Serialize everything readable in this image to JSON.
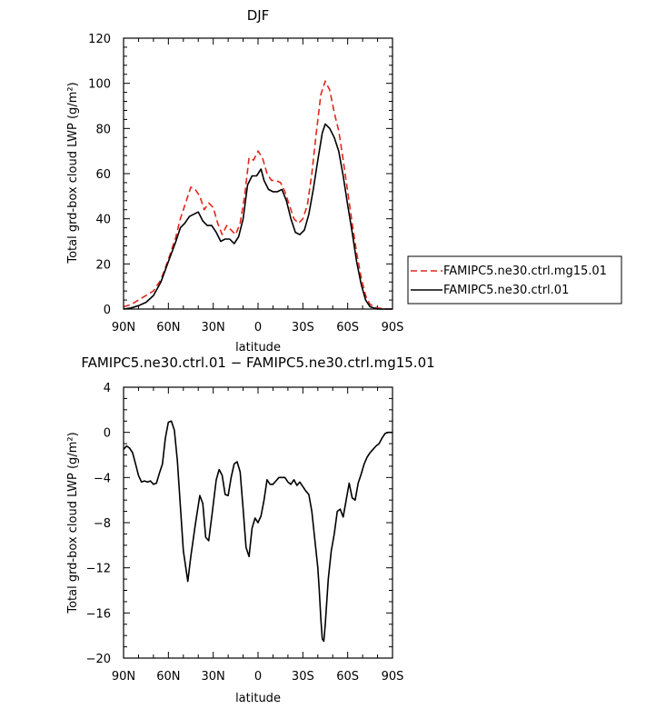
{
  "chart_data": [
    {
      "type": "line",
      "title": "DJF",
      "xlabel": "latitude",
      "ylabel": "Total grd-box cloud LWP (g/m²)",
      "xlim": [
        90,
        -90
      ],
      "ylim": [
        0,
        120
      ],
      "x_ticks": [
        90,
        60,
        30,
        0,
        -30,
        -60,
        -90
      ],
      "x_tick_labels": [
        "90N",
        "60N",
        "30N",
        "0",
        "30S",
        "60S",
        "90S"
      ],
      "y_ticks": [
        0,
        20,
        40,
        60,
        80,
        100,
        120
      ],
      "y_tick_labels": [
        "0",
        "20",
        "40",
        "60",
        "80",
        "100",
        "120"
      ],
      "legend_position": "right",
      "series": [
        {
          "name": "FAMIPC5.ne30.ctrl.mg15.01",
          "color": "#e0271b",
          "dash": "dashed",
          "points": [
            [
              90,
              1
            ],
            [
              85,
              2
            ],
            [
              80,
              4
            ],
            [
              75,
              6
            ],
            [
              70,
              8
            ],
            [
              65,
              13
            ],
            [
              60,
              22
            ],
            [
              55,
              32
            ],
            [
              52,
              40
            ],
            [
              48,
              48
            ],
            [
              45,
              54
            ],
            [
              42,
              53
            ],
            [
              39,
              50
            ],
            [
              36,
              44
            ],
            [
              33,
              47
            ],
            [
              30,
              45
            ],
            [
              27,
              38
            ],
            [
              24,
              33
            ],
            [
              21,
              37
            ],
            [
              18,
              35
            ],
            [
              15,
              33
            ],
            [
              12,
              38
            ],
            [
              9,
              50
            ],
            [
              6,
              67
            ],
            [
              3,
              66
            ],
            [
              0,
              70
            ],
            [
              -3,
              67
            ],
            [
              -6,
              60
            ],
            [
              -9,
              57
            ],
            [
              -12,
              57
            ],
            [
              -15,
              56
            ],
            [
              -18,
              52
            ],
            [
              -21,
              46
            ],
            [
              -24,
              40
            ],
            [
              -27,
              38
            ],
            [
              -30,
              40
            ],
            [
              -33,
              46
            ],
            [
              -36,
              60
            ],
            [
              -39,
              78
            ],
            [
              -42,
              95
            ],
            [
              -45,
              101
            ],
            [
              -48,
              97
            ],
            [
              -51,
              87
            ],
            [
              -54,
              79
            ],
            [
              -57,
              66
            ],
            [
              -60,
              52
            ],
            [
              -63,
              38
            ],
            [
              -66,
              25
            ],
            [
              -69,
              14
            ],
            [
              -72,
              6
            ],
            [
              -75,
              2
            ],
            [
              -80,
              0.5
            ],
            [
              -85,
              0
            ],
            [
              -90,
              0
            ]
          ]
        },
        {
          "name": "FAMIPC5.ne30.ctrl.01",
          "color": "#000000",
          "dash": "solid",
          "points": [
            [
              90,
              0
            ],
            [
              85,
              0.5
            ],
            [
              80,
              1.5
            ],
            [
              75,
              3
            ],
            [
              70,
              6
            ],
            [
              65,
              12
            ],
            [
              60,
              21
            ],
            [
              55,
              30
            ],
            [
              52,
              36
            ],
            [
              49,
              38
            ],
            [
              46,
              41
            ],
            [
              43,
              42
            ],
            [
              40,
              43
            ],
            [
              37,
              39
            ],
            [
              34,
              37
            ],
            [
              31,
              37
            ],
            [
              28,
              34
            ],
            [
              25,
              30
            ],
            [
              22,
              31
            ],
            [
              19,
              31
            ],
            [
              16,
              29
            ],
            [
              13,
              32
            ],
            [
              10,
              40
            ],
            [
              7,
              55
            ],
            [
              4,
              59
            ],
            [
              1,
              59
            ],
            [
              -2,
              62
            ],
            [
              -4,
              57
            ],
            [
              -7,
              53
            ],
            [
              -10,
              52
            ],
            [
              -13,
              52
            ],
            [
              -16,
              53
            ],
            [
              -19,
              48
            ],
            [
              -22,
              40
            ],
            [
              -25,
              34
            ],
            [
              -28,
              33
            ],
            [
              -31,
              35
            ],
            [
              -34,
              42
            ],
            [
              -37,
              53
            ],
            [
              -40,
              66
            ],
            [
              -43,
              78
            ],
            [
              -45,
              82
            ],
            [
              -48,
              80
            ],
            [
              -51,
              76
            ],
            [
              -54,
              70
            ],
            [
              -57,
              59
            ],
            [
              -60,
              46
            ],
            [
              -63,
              34
            ],
            [
              -66,
              21
            ],
            [
              -69,
              11
            ],
            [
              -72,
              4
            ],
            [
              -75,
              1
            ],
            [
              -80,
              0
            ],
            [
              -85,
              0
            ],
            [
              -90,
              0
            ]
          ]
        }
      ]
    },
    {
      "type": "line",
      "title": "FAMIPC5.ne30.ctrl.01 − FAMIPC5.ne30.ctrl.mg15.01",
      "xlabel": "latitude",
      "ylabel": "Total grd-box cloud LWP (g/m²)",
      "xlim": [
        90,
        -90
      ],
      "ylim": [
        -20,
        4
      ],
      "x_ticks": [
        90,
        60,
        30,
        0,
        -30,
        -60,
        -90
      ],
      "x_tick_labels": [
        "90N",
        "60N",
        "30N",
        "0",
        "30S",
        "60S",
        "90S"
      ],
      "y_ticks": [
        4,
        0,
        -4,
        -8,
        -12,
        -16,
        -20
      ],
      "y_tick_labels": [
        "4",
        "0",
        "−4",
        "−8",
        "−12",
        "−16",
        "−20"
      ],
      "series": [
        {
          "color": "#000000",
          "dash": "solid",
          "points": [
            [
              90,
              -1.5
            ],
            [
              88,
              -1.2
            ],
            [
              86,
              -1.4
            ],
            [
              84,
              -1.8
            ],
            [
              82,
              -2.8
            ],
            [
              80,
              -3.8
            ],
            [
              78,
              -4.4
            ],
            [
              76,
              -4.3
            ],
            [
              74,
              -4.4
            ],
            [
              72,
              -4.3
            ],
            [
              70,
              -4.6
            ],
            [
              68,
              -4.5
            ],
            [
              66,
              -3.6
            ],
            [
              64,
              -2.8
            ],
            [
              62,
              -0.5
            ],
            [
              60,
              0.9
            ],
            [
              58,
              1.0
            ],
            [
              56,
              0.2
            ],
            [
              54,
              -2.5
            ],
            [
              52,
              -6.5
            ],
            [
              50,
              -10.5
            ],
            [
              47,
              -13.2
            ],
            [
              45,
              -11.0
            ],
            [
              42,
              -8.2
            ],
            [
              39,
              -5.6
            ],
            [
              37,
              -6.3
            ],
            [
              35,
              -9.3
            ],
            [
              33,
              -9.6
            ],
            [
              31,
              -7.5
            ],
            [
              28,
              -4.2
            ],
            [
              26,
              -3.3
            ],
            [
              24,
              -3.8
            ],
            [
              22,
              -5.5
            ],
            [
              20,
              -5.6
            ],
            [
              18,
              -4.0
            ],
            [
              16,
              -2.8
            ],
            [
              14,
              -2.6
            ],
            [
              12,
              -3.5
            ],
            [
              10,
              -6.8
            ],
            [
              8,
              -10.2
            ],
            [
              6,
              -11.0
            ],
            [
              4,
              -8.5
            ],
            [
              2,
              -7.6
            ],
            [
              0,
              -8.0
            ],
            [
              -2,
              -7.4
            ],
            [
              -4,
              -6.0
            ],
            [
              -6,
              -4.2
            ],
            [
              -8,
              -4.6
            ],
            [
              -10,
              -4.6
            ],
            [
              -12,
              -4.3
            ],
            [
              -14,
              -4.0
            ],
            [
              -16,
              -4.0
            ],
            [
              -18,
              -4.0
            ],
            [
              -20,
              -4.4
            ],
            [
              -22,
              -4.6
            ],
            [
              -24,
              -4.2
            ],
            [
              -26,
              -4.7
            ],
            [
              -28,
              -4.4
            ],
            [
              -30,
              -4.8
            ],
            [
              -32,
              -5.2
            ],
            [
              -34,
              -5.5
            ],
            [
              -36,
              -7.0
            ],
            [
              -38,
              -9.5
            ],
            [
              -40,
              -12.0
            ],
            [
              -41,
              -14.0
            ],
            [
              -42,
              -16.5
            ],
            [
              -43,
              -18.3
            ],
            [
              -44,
              -18.5
            ],
            [
              -45,
              -17.0
            ],
            [
              -47,
              -13.0
            ],
            [
              -49,
              -10.5
            ],
            [
              -51,
              -9.0
            ],
            [
              -53,
              -7.0
            ],
            [
              -55,
              -6.8
            ],
            [
              -57,
              -7.5
            ],
            [
              -59,
              -6.0
            ],
            [
              -61,
              -4.5
            ],
            [
              -63,
              -5.8
            ],
            [
              -65,
              -6.0
            ],
            [
              -67,
              -4.5
            ],
            [
              -69,
              -3.7
            ],
            [
              -71,
              -2.8
            ],
            [
              -73,
              -2.2
            ],
            [
              -75,
              -1.8
            ],
            [
              -77,
              -1.5
            ],
            [
              -79,
              -1.2
            ],
            [
              -81,
              -1.0
            ],
            [
              -83,
              -0.5
            ],
            [
              -85,
              -0.1
            ],
            [
              -87,
              0
            ],
            [
              -90,
              0
            ]
          ]
        }
      ]
    }
  ]
}
